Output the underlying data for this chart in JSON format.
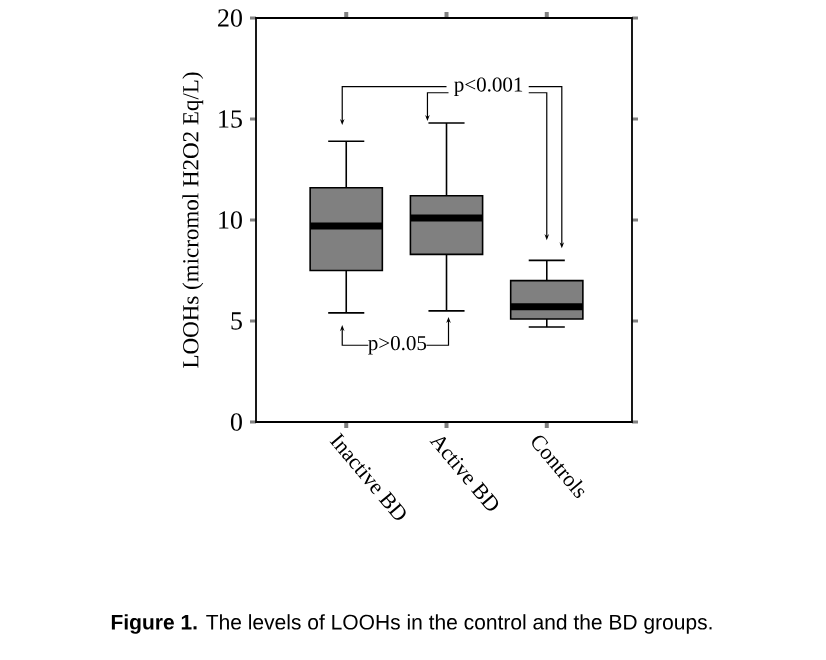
{
  "chart_data": {
    "type": "box",
    "ylabel": "LOOHs (micromol H2O2 Eq/L)",
    "categories": [
      "Inactive BD",
      "Active BD",
      "Controls"
    ],
    "boxes": [
      {
        "low": 5.4,
        "q1": 7.5,
        "median": 9.7,
        "q3": 11.6,
        "high": 13.9
      },
      {
        "low": 5.5,
        "q1": 8.3,
        "median": 10.1,
        "q3": 11.2,
        "high": 14.8
      },
      {
        "low": 4.7,
        "q1": 5.1,
        "median": 5.7,
        "q3": 7.0,
        "high": 8.0
      }
    ],
    "color": "#808080",
    "ylim": [
      0,
      20
    ],
    "yticks": [
      0,
      5,
      10,
      15,
      20
    ],
    "grid": false,
    "annotations": [
      "p<0.001",
      "p>0.05",
      "**Figure 1.** The levels of LOOHs in the control and the BD groups."
    ]
  }
}
